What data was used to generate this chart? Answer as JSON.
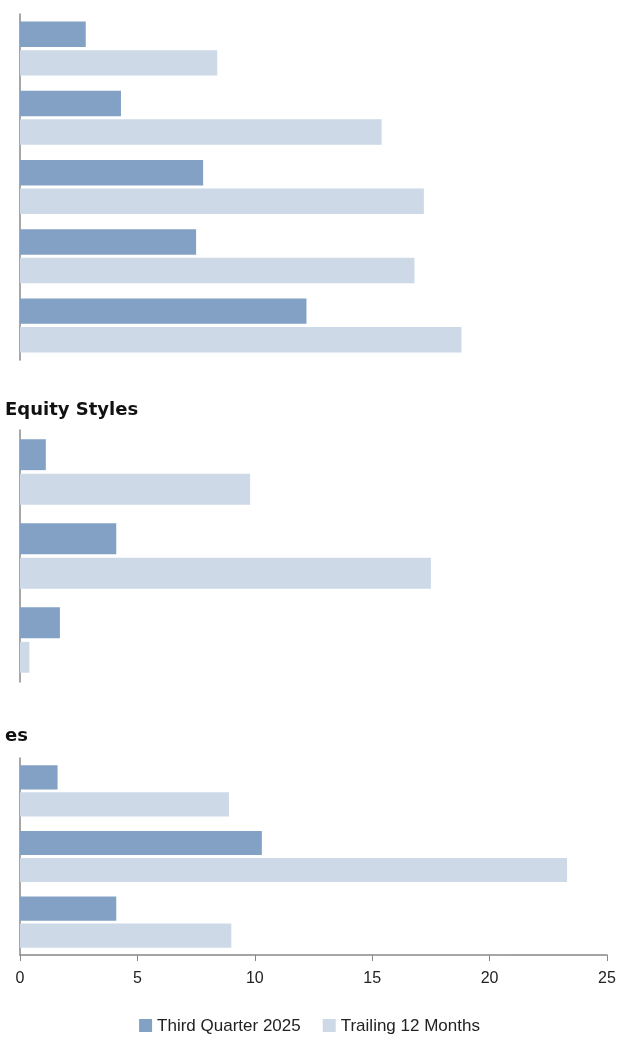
{
  "chart_data": [
    {
      "type": "bar",
      "orientation": "horizontal",
      "categories": [
        null,
        null,
        null,
        null,
        null
      ],
      "xlim": [
        0,
        25
      ],
      "tick_labels": false,
      "series": [
        {
          "color": "#82a1c4",
          "values": [
            2.8,
            4.3,
            7.8,
            7.5,
            12.2
          ]
        },
        {
          "color": "#cdd9e7",
          "values": [
            8.4,
            15.4,
            17.2,
            16.8,
            18.8
          ]
        }
      ]
    },
    {
      "type": "bar",
      "orientation": "horizontal",
      "title": "Equity Styles",
      "categories": [
        null,
        null,
        null
      ],
      "xlim": [
        0,
        25
      ],
      "tick_labels": false,
      "series": [
        {
          "color": "#82a1c4",
          "values": [
            1.1,
            4.1,
            1.7
          ]
        },
        {
          "color": "#cdd9e7",
          "values": [
            9.8,
            17.5,
            0.4
          ]
        }
      ]
    },
    {
      "type": "bar",
      "orientation": "horizontal",
      "title": "es",
      "categories": [
        null,
        null,
        null
      ],
      "xlim": [
        0,
        25
      ],
      "xticks": [
        0,
        5,
        10,
        15,
        20,
        25
      ],
      "legend": "bottom",
      "series": [
        {
          "name": "Third Quarter 2025",
          "color": "#82a1c4",
          "values": [
            1.6,
            10.3,
            4.1
          ]
        },
        {
          "name": "Trailing 12 Months",
          "color": "#cdd9e7",
          "values": [
            8.9,
            23.3,
            9.0
          ]
        }
      ]
    }
  ]
}
